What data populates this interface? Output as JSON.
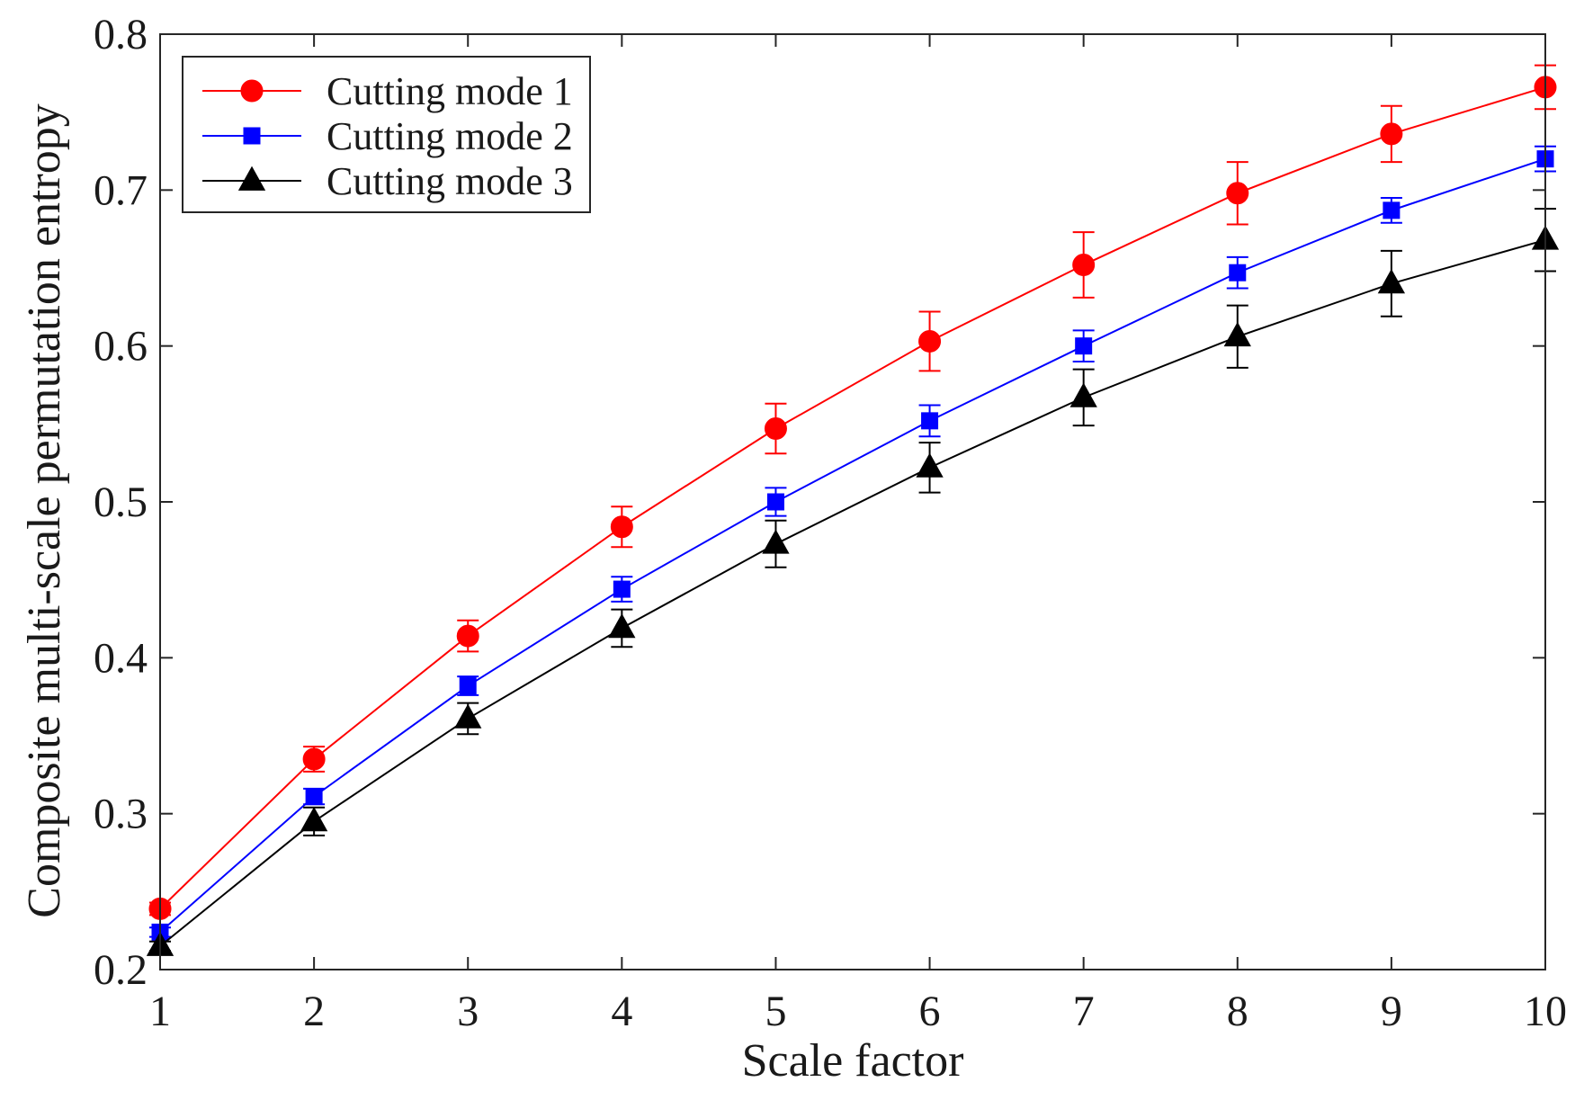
{
  "chart_data": {
    "type": "line",
    "title": "",
    "xlabel": "Scale factor",
    "ylabel": "Composite multi-scale permutation entropy",
    "x": [
      1,
      2,
      3,
      4,
      5,
      6,
      7,
      8,
      9,
      10
    ],
    "xlim": [
      1,
      10
    ],
    "ylim": [
      0.2,
      0.8
    ],
    "xticks": [
      1,
      2,
      3,
      4,
      5,
      6,
      7,
      8,
      9,
      10
    ],
    "yticks": [
      0.2,
      0.3,
      0.4,
      0.5,
      0.6,
      0.7,
      0.8
    ],
    "ytick_labels": [
      "0.2",
      "0.3",
      "0.4",
      "0.5",
      "0.6",
      "0.7",
      "0.8"
    ],
    "xtick_labels": [
      "1",
      "2",
      "3",
      "4",
      "5",
      "6",
      "7",
      "8",
      "9",
      "10"
    ],
    "grid": false,
    "legend_position": "top-left",
    "series": [
      {
        "name": "Cutting mode 1",
        "color": "#ff0000",
        "marker": "circle",
        "values": [
          0.239,
          0.335,
          0.414,
          0.484,
          0.547,
          0.603,
          0.652,
          0.698,
          0.736,
          0.766
        ],
        "errors": [
          0.004,
          0.008,
          0.01,
          0.013,
          0.016,
          0.019,
          0.021,
          0.02,
          0.018,
          0.014
        ]
      },
      {
        "name": "Cutting mode 2",
        "color": "#0000ff",
        "marker": "square",
        "values": [
          0.224,
          0.311,
          0.382,
          0.444,
          0.5,
          0.552,
          0.6,
          0.647,
          0.687,
          0.72
        ],
        "errors": [
          0.003,
          0.005,
          0.006,
          0.008,
          0.009,
          0.01,
          0.01,
          0.01,
          0.008,
          0.008
        ]
      },
      {
        "name": "Cutting mode 3",
        "color": "#000000",
        "marker": "triangle",
        "values": [
          0.215,
          0.295,
          0.361,
          0.419,
          0.473,
          0.522,
          0.567,
          0.606,
          0.64,
          0.668
        ],
        "errors": [
          0.003,
          0.009,
          0.01,
          0.012,
          0.015,
          0.016,
          0.018,
          0.02,
          0.021,
          0.02
        ]
      }
    ]
  }
}
